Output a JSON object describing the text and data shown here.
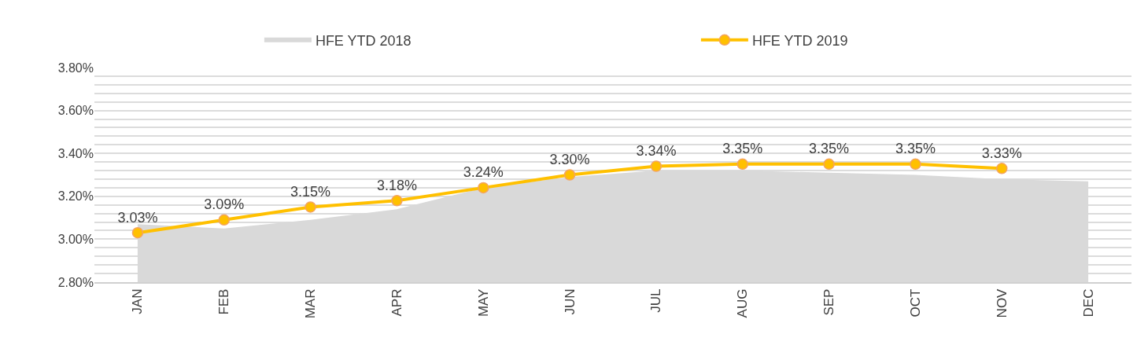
{
  "chart_data": {
    "type": "line",
    "categories": [
      "JAN",
      "FEB",
      "MAR",
      "APR",
      "MAY",
      "JUN",
      "JUL",
      "AUG",
      "SEP",
      "OCT",
      "NOV",
      "DEC"
    ],
    "series": [
      {
        "name": "HFE YTD 2018",
        "type": "area",
        "color": "#d9d9d9",
        "values": [
          3.07,
          3.05,
          3.09,
          3.14,
          3.24,
          3.29,
          3.32,
          3.32,
          3.31,
          3.3,
          3.28,
          3.27
        ]
      },
      {
        "name": "HFE YTD 2019",
        "color": "#ffc000",
        "marker": "circle",
        "values": [
          3.03,
          3.09,
          3.15,
          3.18,
          3.24,
          3.3,
          3.34,
          3.35,
          3.35,
          3.35,
          3.33,
          null
        ],
        "value_labels": [
          "3.03%",
          "3.09%",
          "3.15%",
          "3.18%",
          "3.24%",
          "3.30%",
          "3.34%",
          "3.35%",
          "3.35%",
          "3.35%",
          "3.33%",
          null
        ]
      }
    ],
    "ylim": [
      2.8,
      3.8
    ],
    "yticks": [
      {
        "value": 2.8,
        "label": "2.80%"
      },
      {
        "value": 3.0,
        "label": "3.00%"
      },
      {
        "value": 3.2,
        "label": "3.20%"
      },
      {
        "value": 3.4,
        "label": "3.40%"
      },
      {
        "value": 3.6,
        "label": "3.60%"
      },
      {
        "value": 3.8,
        "label": "3.80%"
      },
      {
        "value": 2.84,
        "label": null
      },
      {
        "value": 2.88,
        "label": null
      },
      {
        "value": 2.92,
        "label": null
      },
      {
        "value": 2.96,
        "label": null
      },
      {
        "value": 3.04,
        "label": null
      },
      {
        "value": 3.08,
        "label": null
      },
      {
        "value": 3.12,
        "label": null
      },
      {
        "value": 3.16,
        "label": null
      },
      {
        "value": 3.24,
        "label": null
      },
      {
        "value": 3.28,
        "label": null
      },
      {
        "value": 3.32,
        "label": null
      },
      {
        "value": 3.36,
        "label": null
      },
      {
        "value": 3.44,
        "label": null
      },
      {
        "value": 3.48,
        "label": null
      },
      {
        "value": 3.52,
        "label": null
      },
      {
        "value": 3.56,
        "label": null
      },
      {
        "value": 3.64,
        "label": null
      },
      {
        "value": 3.68,
        "label": null
      },
      {
        "value": 3.72,
        "label": null
      },
      {
        "value": 3.76,
        "label": null
      }
    ],
    "grid": "y",
    "legend": "top",
    "line_style": "solid"
  }
}
